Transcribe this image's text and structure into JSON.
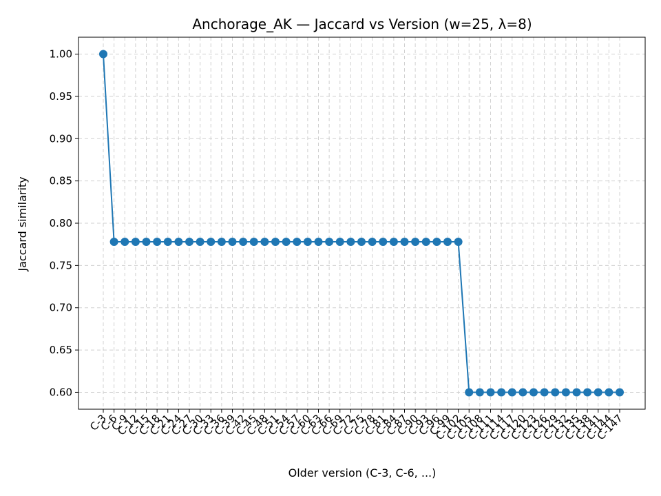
{
  "chart_data": {
    "type": "line",
    "title": "Anchorage_AK — Jaccard vs Version (w=25, λ=8)",
    "xlabel": "Older version (C-3, C-6, ...)",
    "ylabel": "Jaccard similarity",
    "ylim": [
      0.58,
      1.02
    ],
    "yticks": [
      "0.60",
      "0.65",
      "0.70",
      "0.75",
      "0.80",
      "0.85",
      "0.90",
      "0.95",
      "1.00"
    ],
    "grid": true,
    "legend": "none",
    "colors": {
      "series": "#1f77b4",
      "grid": "#d0d0d0"
    },
    "categories": [
      "C-3",
      "C-6",
      "C-9",
      "C-12",
      "C-15",
      "C-18",
      "C-21",
      "C-24",
      "C-27",
      "C-30",
      "C-33",
      "C-36",
      "C-39",
      "C-42",
      "C-45",
      "C-48",
      "C-51",
      "C-54",
      "C-57",
      "C-60",
      "C-63",
      "C-66",
      "C-69",
      "C-72",
      "C-75",
      "C-78",
      "C-81",
      "C-84",
      "C-87",
      "C-90",
      "C-93",
      "C-96",
      "C-99",
      "C-102",
      "C-105",
      "C-108",
      "C-111",
      "C-114",
      "C-117",
      "C-120",
      "C-123",
      "C-126",
      "C-129",
      "C-132",
      "C-135",
      "C-138",
      "C-141",
      "C-144",
      "C-147"
    ],
    "series": [
      {
        "values": [
          1.0,
          0.778,
          0.778,
          0.778,
          0.778,
          0.778,
          0.778,
          0.778,
          0.778,
          0.778,
          0.778,
          0.778,
          0.778,
          0.778,
          0.778,
          0.778,
          0.778,
          0.778,
          0.778,
          0.778,
          0.778,
          0.778,
          0.778,
          0.778,
          0.778,
          0.778,
          0.778,
          0.778,
          0.778,
          0.778,
          0.778,
          0.778,
          0.778,
          0.778,
          0.6,
          0.6,
          0.6,
          0.6,
          0.6,
          0.6,
          0.6,
          0.6,
          0.6,
          0.6,
          0.6,
          0.6,
          0.6,
          0.6,
          0.6
        ]
      }
    ]
  }
}
